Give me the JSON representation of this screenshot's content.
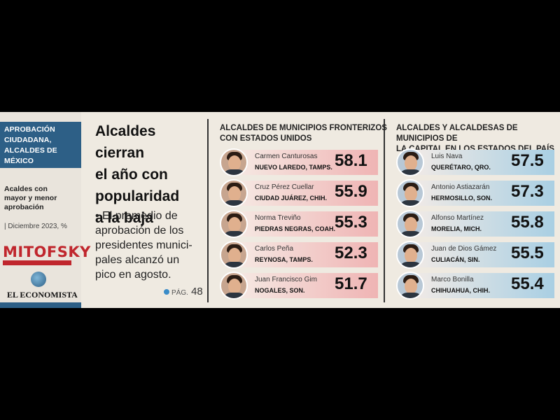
{
  "left_panel": {
    "title_lines": [
      "APROBACIÓN",
      "CIUDADANA,",
      "ALCALDES DE",
      "MÉXICO"
    ],
    "subtitle_lines": [
      "Acaldes con",
      "mayor y menor",
      "aprobación"
    ],
    "date": "| Diciembre 2023, %",
    "logo_mitofsky": "MITOFSKY",
    "logo_economista": "EL ECONOMISTA"
  },
  "headline": {
    "lines": [
      "Alcaldes cierran",
      "el año con",
      "popularidad",
      "a la baja"
    ],
    "bullet_lines": [
      "• El promedio de",
      "aprobación de los",
      "presidentes munici-",
      "pales alcanzó un",
      "pico en agosto."
    ],
    "page_label": "PÁG.",
    "page_number": "48"
  },
  "border": {
    "title_lines": [
      "ALCALDES DE MUNICIPIOS FRONTERIZOS",
      "CON ESTADOS UNIDOS"
    ],
    "color": "#efb4b4",
    "rows": [
      {
        "name": "Carmen Canturosas",
        "city": "NUEVO LAREDO, TAMPS.",
        "value": "58.1"
      },
      {
        "name": "Cruz Pérez Cuellar",
        "city": "CIUDAD JUÁREZ, CHIH.",
        "value": "55.9"
      },
      {
        "name": "Norma Treviño",
        "city": "PIEDRAS NEGRAS, COAH.",
        "value": "55.3"
      },
      {
        "name": "Carlos Peña",
        "city": "REYNOSA, TAMPS.",
        "value": "52.3"
      },
      {
        "name": "Juan Francisco Gim",
        "city": "NOGALES, SON.",
        "value": "51.7"
      }
    ]
  },
  "capital": {
    "title_lines": [
      "ALCALDES Y ALCALDESAS DE MUNICIPIOS DE",
      "LA CAPITAL EN LOS ESTADOS DEL PAÍS"
    ],
    "color": "#a9cfe3",
    "rows": [
      {
        "name": "Luis Nava",
        "city": "QUERÉTARO, QRO.",
        "value": "57.5"
      },
      {
        "name": "Antonio Astiazarán",
        "city": "HERMOSILLO, SON.",
        "value": "57.3"
      },
      {
        "name": "Alfonso Martínez",
        "city": "MORELIA, MICH.",
        "value": "55.8"
      },
      {
        "name": "Juan de Dios Gámez",
        "city": "CULIACÁN, SIN.",
        "value": "55.5"
      },
      {
        "name": "Marco Bonilla",
        "city": "CHIHUAHUA, CHIH.",
        "value": "55.4"
      }
    ]
  }
}
